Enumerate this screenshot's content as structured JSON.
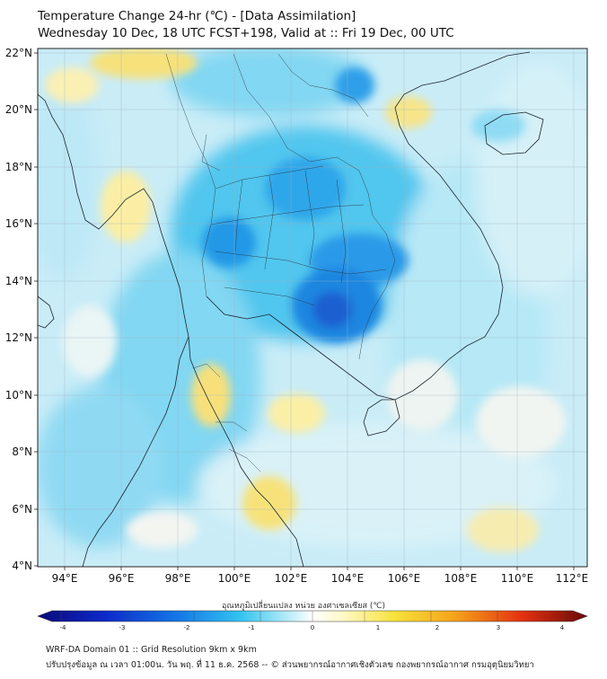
{
  "header": {
    "title_line1": "Temperature Change 24-hr (℃) - [Data Assimilation]",
    "title_line2": "Wednesday 10 Dec, 18 UTC FCST+198, Valid at :: Fri 19 Dec, 00 UTC"
  },
  "map": {
    "lat_labels": [
      "22°N",
      "20°N",
      "18°N",
      "16°N",
      "14°N",
      "12°N",
      "10°N",
      "8°N",
      "6°N",
      "4°N"
    ],
    "lon_labels": [
      "94°E",
      "96°E",
      "98°E",
      "100°E",
      "102°E",
      "104°E",
      "106°E",
      "108°E",
      "110°E",
      "112°E"
    ]
  },
  "colorbar": {
    "title": "อุณหภูมิเปลี่ยนแปลง หน่วย องศาเซลเซียส (℃)",
    "ticks": [
      "-4",
      "-3",
      "-2",
      "-1",
      "0",
      "1",
      "2",
      "3",
      "4"
    ]
  },
  "footer": {
    "line1": "WRF-DA Domain 01 :: Grid Resolution 9km x 9km",
    "line2": "ปรับปรุงข้อมูล ณ เวลา 01:00น. วัน พฤ. ที่ 11 ธ.ค. 2568 -- © ส่วนพยากรณ์อากาศเชิงตัวเลข กองพยากรณ์อากาศ กรมอุตุนิยมวิทยา"
  },
  "colors": {
    "cold_deep": "#1f5fd0",
    "cold_mid": "#1b9ae6",
    "cold_light": "#79d4f2",
    "neutral": "#f2f5f3",
    "warm_light": "#fbe98c",
    "warm_deep": "#f3d74e"
  }
}
